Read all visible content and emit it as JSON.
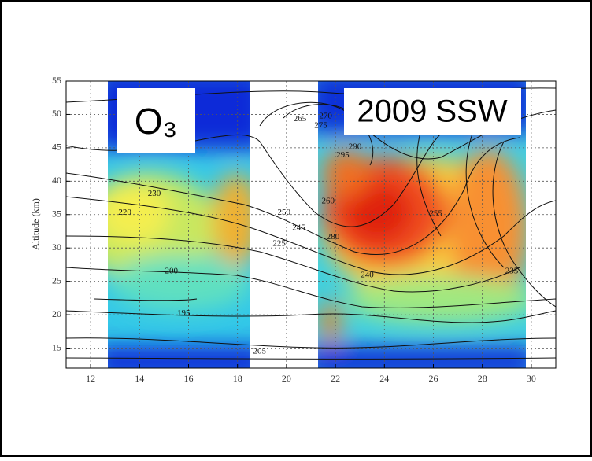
{
  "chart_data": {
    "type": "contour",
    "species": "O₃",
    "event": "2009 SSW",
    "y_label": "Altitude (km)",
    "xlim": [
      11,
      31
    ],
    "xticks": [
      12,
      14,
      16,
      18,
      20,
      22,
      24,
      26,
      28,
      30
    ],
    "ylim": [
      12,
      55
    ],
    "yticks": [
      15,
      20,
      25,
      30,
      35,
      40,
      45,
      50,
      55
    ],
    "grid": true,
    "contour_labels": [
      {
        "value": 265,
        "x": 20.55,
        "y": 49.3
      },
      {
        "value": 270,
        "x": 21.6,
        "y": 49.7
      },
      {
        "value": 275,
        "x": 21.4,
        "y": 48.3
      },
      {
        "value": 290,
        "x": 22.8,
        "y": 45.1
      },
      {
        "value": 295,
        "x": 22.3,
        "y": 43.9
      },
      {
        "value": 230,
        "x": 14.6,
        "y": 38.1
      },
      {
        "value": 220,
        "x": 13.4,
        "y": 35.3
      },
      {
        "value": 250,
        "x": 19.9,
        "y": 35.3
      },
      {
        "value": 245,
        "x": 20.5,
        "y": 33.0
      },
      {
        "value": 225,
        "x": 19.7,
        "y": 30.6
      },
      {
        "value": 260,
        "x": 21.7,
        "y": 37.0
      },
      {
        "value": 280,
        "x": 21.9,
        "y": 31.6
      },
      {
        "value": 255,
        "x": 26.1,
        "y": 35.1
      },
      {
        "value": 240,
        "x": 23.3,
        "y": 25.9
      },
      {
        "value": 235,
        "x": 29.2,
        "y": 26.5
      },
      {
        "value": 200,
        "x": 15.3,
        "y": 26.5
      },
      {
        "value": 195,
        "x": 15.8,
        "y": 20.2
      },
      {
        "value": 205,
        "x": 18.9,
        "y": 14.5
      }
    ]
  }
}
